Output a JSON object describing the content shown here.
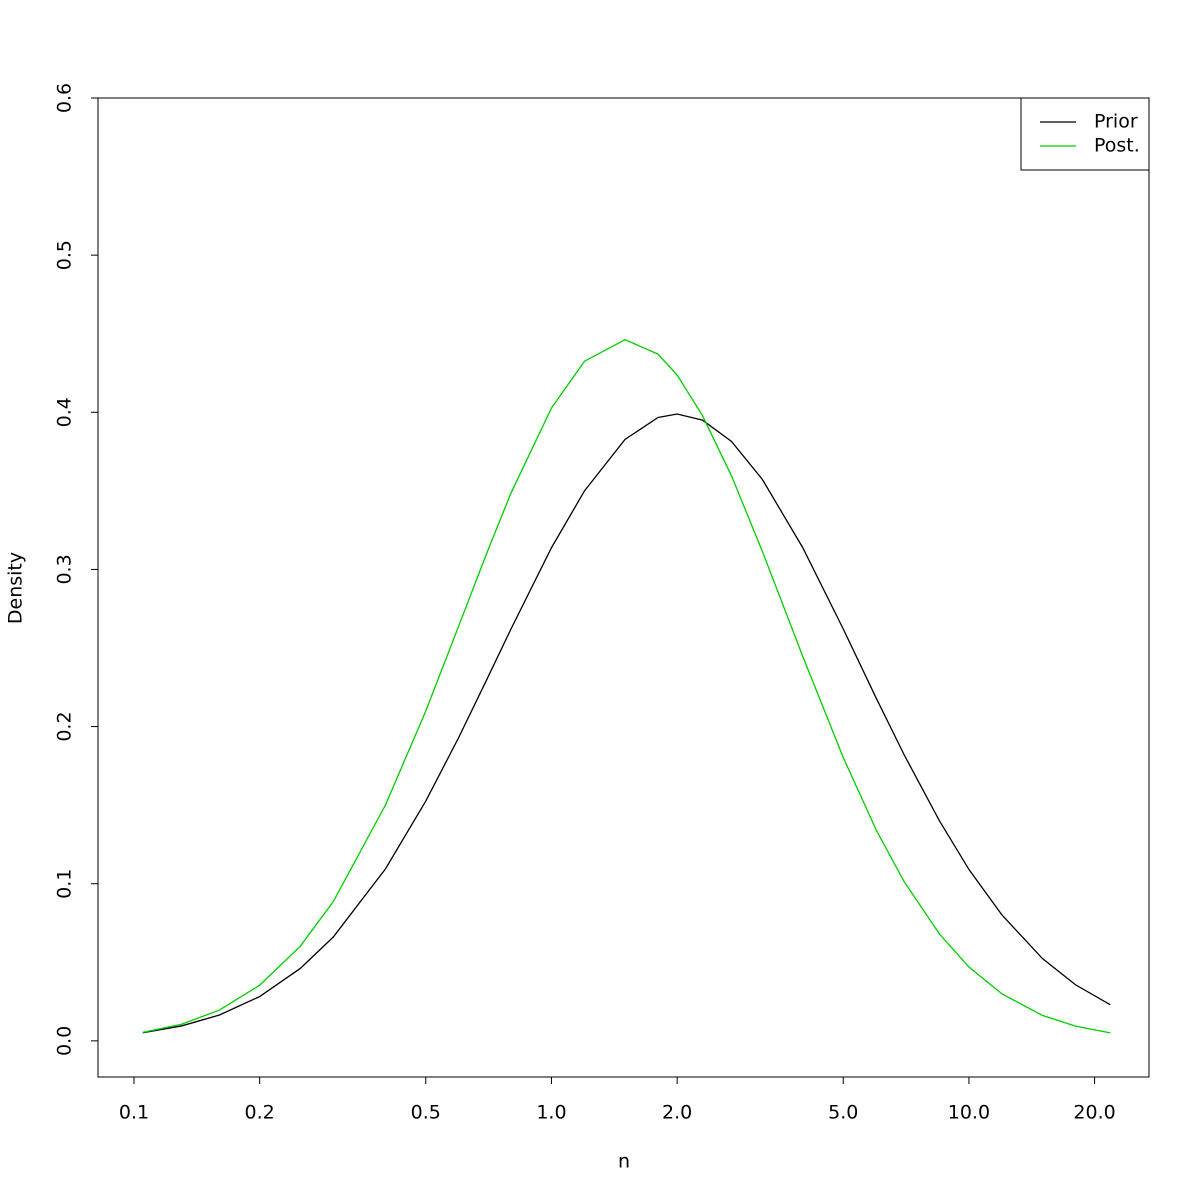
{
  "chart_data": {
    "type": "line",
    "xlabel": "n",
    "ylabel": "Density",
    "xlog": true,
    "legend": "topright",
    "x": [
      0.105,
      0.13,
      0.16,
      0.2,
      0.25,
      0.3,
      0.4,
      0.5,
      0.6,
      0.7,
      0.8,
      1.0,
      1.2,
      1.5,
      1.8,
      2.0,
      2.3,
      2.7,
      3.2,
      4,
      5,
      6,
      7,
      8.5,
      10,
      12,
      15,
      18,
      21.8
    ],
    "series": [
      {
        "name": "Prior",
        "color": "#000000",
        "values": [
          0.0052,
          0.0095,
          0.0164,
          0.0282,
          0.046,
          0.066,
          0.1093,
          0.1526,
          0.1932,
          0.2299,
          0.2621,
          0.3138,
          0.35,
          0.3827,
          0.3967,
          0.3989,
          0.395,
          0.3814,
          0.3573,
          0.3138,
          0.2621,
          0.218,
          0.1819,
          0.14,
          0.1091,
          0.0801,
          0.0524,
          0.0357,
          0.023
        ]
      },
      {
        "name": "Post.",
        "color": "#00cd00",
        "values": [
          0.0054,
          0.0106,
          0.0195,
          0.0354,
          0.0601,
          0.0885,
          0.1499,
          0.2099,
          0.2642,
          0.3104,
          0.3486,
          0.4027,
          0.4325,
          0.4462,
          0.437,
          0.4237,
          0.3979,
          0.3595,
          0.3116,
          0.2446,
          0.1803,
          0.1341,
          0.1012,
          0.068,
          0.047,
          0.0299,
          0.0162,
          0.0094,
          0.0051
        ]
      }
    ],
    "xlim": [
      0.082,
      27.0
    ],
    "ylim": [
      -0.023,
      0.6
    ],
    "xticks": [
      0.1,
      0.2,
      0.5,
      {
        "value": 1,
        "label": "1.0"
      },
      {
        "value": 2,
        "label": "2.0"
      },
      {
        "value": 5,
        "label": "5.0"
      },
      {
        "value": 10,
        "label": "10.0"
      },
      {
        "value": 20,
        "label": "20.0"
      }
    ],
    "yticks": [
      {
        "value": 0,
        "label": "0.0"
      },
      0.1,
      0.2,
      0.3,
      0.4,
      0.5,
      0.6
    ]
  }
}
